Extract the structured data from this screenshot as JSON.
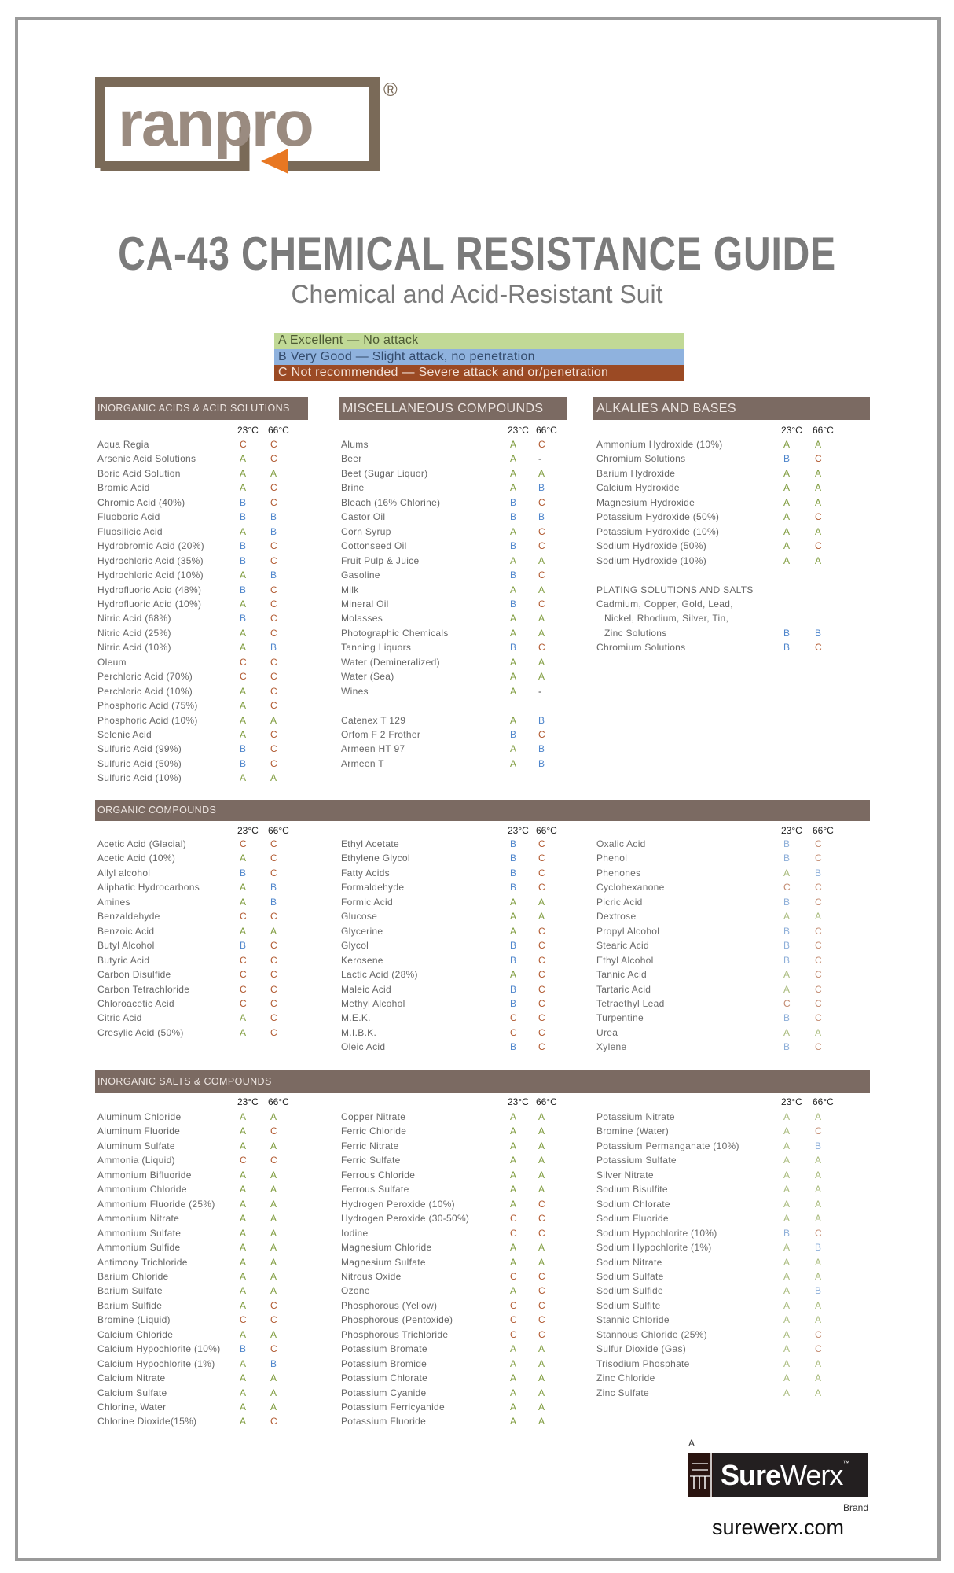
{
  "brand": {
    "logo_text": "ranpro",
    "registered_mark": "®",
    "logo_colors": {
      "frame": "#7a6a58",
      "ran": "#9a8b80",
      "pro": "#7a6a58",
      "arrow": "#e87722"
    }
  },
  "title": "CA-43 CHEMICAL RESISTANCE GUIDE",
  "subtitle": "Chemical and Acid-Resistant Suit",
  "legend": [
    {
      "label": "A Excellent — No attack",
      "color": "#c1d996"
    },
    {
      "label": "B Very Good — Slight attack, no penetration",
      "color": "#8fb2de"
    },
    {
      "label": "C Not recommended — Severe attack and or/penetration",
      "color": "#9b4a24"
    }
  ],
  "rating_colors": {
    "A": "#7f9c3e",
    "B": "#4f86cc",
    "C": "#b0582f"
  },
  "temp_headers": {
    "t23": "23°C",
    "t66": "66°C"
  },
  "inorganic_acids": {
    "title": "INORGANIC ACIDS & ACID SOLUTIONS",
    "rows": [
      {
        "name": "Aqua Regia",
        "t23": "C",
        "t66": "C"
      },
      {
        "name": "Arsenic Acid Solutions",
        "t23": "A",
        "t66": "C"
      },
      {
        "name": "Boric Acid Solution",
        "t23": "A",
        "t66": "A"
      },
      {
        "name": "Bromic Acid",
        "t23": "A",
        "t66": "C"
      },
      {
        "name": "Chromic Acid (40%)",
        "t23": "B",
        "t66": "C"
      },
      {
        "name": "Fluoboric Acid",
        "t23": "B",
        "t66": "B"
      },
      {
        "name": "Fluosilicic Acid",
        "t23": "A",
        "t66": "B"
      },
      {
        "name": "Hydrobromic Acid (20%)",
        "t23": "B",
        "t66": "C"
      },
      {
        "name": "Hydrochloric Acid (35%)",
        "t23": "B",
        "t66": "C"
      },
      {
        "name": "Hydrochloric Acid (10%)",
        "t23": "A",
        "t66": "B"
      },
      {
        "name": "Hydrofluoric Acid (48%)",
        "t23": "B",
        "t66": "C"
      },
      {
        "name": "Hydrofluoric Acid (10%)",
        "t23": "A",
        "t66": "C"
      },
      {
        "name": "Nitric Acid (68%)",
        "t23": "B",
        "t66": "C"
      },
      {
        "name": "Nitric Acid (25%)",
        "t23": "A",
        "t66": "C"
      },
      {
        "name": "Nitric Acid (10%)",
        "t23": "A",
        "t66": "B"
      },
      {
        "name": "Oleum",
        "t23": "C",
        "t66": "C"
      },
      {
        "name": "Perchloric Acid (70%)",
        "t23": "C",
        "t66": "C"
      },
      {
        "name": "Perchloric Acid (10%)",
        "t23": "A",
        "t66": "C"
      },
      {
        "name": "Phosphoric Acid (75%)",
        "t23": "A",
        "t66": "C"
      },
      {
        "name": "Phosphoric Acid (10%)",
        "t23": "A",
        "t66": "A"
      },
      {
        "name": "Selenic Acid",
        "t23": "A",
        "t66": "C"
      },
      {
        "name": "Sulfuric Acid (99%)",
        "t23": "B",
        "t66": "C"
      },
      {
        "name": "Sulfuric Acid (50%)",
        "t23": "B",
        "t66": "C"
      },
      {
        "name": "Sulfuric Acid (10%)",
        "t23": "A",
        "t66": "A"
      }
    ]
  },
  "misc": {
    "title": "MISCELLANEOUS COMPOUNDS",
    "groups": [
      {
        "rows": [
          {
            "name": "Alums",
            "t23": "A",
            "t66": "C"
          },
          {
            "name": "Beer",
            "t23": "A",
            "t66": "-"
          },
          {
            "name": "Beet (Sugar Liquor)",
            "t23": "A",
            "t66": "A"
          },
          {
            "name": "Brine",
            "t23": "A",
            "t66": "B"
          },
          {
            "name": "Bleach (16% Chlorine)",
            "t23": "B",
            "t66": "C"
          },
          {
            "name": "Castor Oil",
            "t23": "B",
            "t66": "B"
          },
          {
            "name": "Corn Syrup",
            "t23": "A",
            "t66": "C"
          },
          {
            "name": "Cottonseed Oil",
            "t23": "B",
            "t66": "C"
          },
          {
            "name": "Fruit Pulp & Juice",
            "t23": "A",
            "t66": "A"
          },
          {
            "name": "Gasoline",
            "t23": "B",
            "t66": "C"
          },
          {
            "name": "Milk",
            "t23": "A",
            "t66": "A"
          },
          {
            "name": "Mineral Oil",
            "t23": "B",
            "t66": "C"
          },
          {
            "name": "Molasses",
            "t23": "A",
            "t66": "A"
          },
          {
            "name": "Photographic Chemicals",
            "t23": "A",
            "t66": "A"
          },
          {
            "name": "Tanning Liquors",
            "t23": "B",
            "t66": "C"
          },
          {
            "name": "Water (Demineralized)",
            "t23": "A",
            "t66": "A"
          },
          {
            "name": "Water (Sea)",
            "t23": "A",
            "t66": "A"
          },
          {
            "name": "Wines",
            "t23": "A",
            "t66": "-"
          }
        ]
      },
      {
        "rows": [
          {
            "name": "Catenex T 129",
            "t23": "A",
            "t66": "B"
          },
          {
            "name": "Orfom F 2 Frother",
            "t23": "B",
            "t66": "C"
          },
          {
            "name": "Armeen HT 97",
            "t23": "A",
            "t66": "B"
          },
          {
            "name": "Armeen T",
            "t23": "A",
            "t66": "B"
          }
        ]
      }
    ]
  },
  "alkalies": {
    "title": "ALKALIES AND BASES",
    "rows": [
      {
        "name": "Ammonium Hydroxide (10%)",
        "t23": "A",
        "t66": "A"
      },
      {
        "name": "Chromium Solutions",
        "t23": "B",
        "t66": "C"
      },
      {
        "name": "Barium Hydroxide",
        "t23": "A",
        "t66": "A"
      },
      {
        "name": "Calcium Hydroxide",
        "t23": "A",
        "t66": "A"
      },
      {
        "name": "Magnesium Hydroxide",
        "t23": "A",
        "t66": "A"
      },
      {
        "name": "Potassium Hydroxide (50%)",
        "t23": "A",
        "t66": "C"
      },
      {
        "name": "Potassium Hydroxide (10%)",
        "t23": "A",
        "t66": "A"
      },
      {
        "name": "Sodium Hydroxide (50%)",
        "t23": "A",
        "t66": "C"
      },
      {
        "name": "Sodium Hydroxide (10%)",
        "t23": "A",
        "t66": "A"
      }
    ],
    "plating": {
      "title": "PLATING SOLUTIONS AND SALTS",
      "items": [
        {
          "lines": [
            "Cadmium, Copper, Gold, Lead,",
            "Nickel, Rhodium, Silver, Tin,",
            "Zinc Solutions"
          ],
          "t23": "B",
          "t66": "B"
        },
        {
          "lines": [
            "Chromium Solutions"
          ],
          "t23": "B",
          "t66": "C"
        }
      ]
    }
  },
  "organic": {
    "title": "ORGANIC COMPOUNDS",
    "columns": [
      {
        "rows": [
          {
            "name": "Acetic Acid (Glacial)",
            "t23": "C",
            "t66": "C"
          },
          {
            "name": "Acetic Acid (10%)",
            "t23": "A",
            "t66": "C"
          },
          {
            "name": "Allyl alcohol",
            "t23": "B",
            "t66": "C"
          },
          {
            "name": "Aliphatic Hydrocarbons",
            "t23": "A",
            "t66": "B"
          },
          {
            "name": "Amines",
            "t23": "A",
            "t66": "B"
          },
          {
            "name": "Benzaldehyde",
            "t23": "C",
            "t66": "C"
          },
          {
            "name": "Benzoic Acid",
            "t23": "A",
            "t66": "A"
          },
          {
            "name": "Butyl Alcohol",
            "t23": "B",
            "t66": "C"
          },
          {
            "name": "Butyric Acid",
            "t23": "C",
            "t66": "C"
          },
          {
            "name": "Carbon Disulfide",
            "t23": "C",
            "t66": "C"
          },
          {
            "name": "Carbon Tetrachloride",
            "t23": "C",
            "t66": "C"
          },
          {
            "name": "Chloroacetic Acid",
            "t23": "C",
            "t66": "C"
          },
          {
            "name": "Citric Acid",
            "t23": "A",
            "t66": "C"
          },
          {
            "name": "Cresylic Acid (50%)",
            "t23": "A",
            "t66": "C"
          }
        ]
      },
      {
        "rows": [
          {
            "name": "Ethyl Acetate",
            "t23": "B",
            "t66": "C"
          },
          {
            "name": "Ethylene Glycol",
            "t23": "B",
            "t66": "C"
          },
          {
            "name": "Fatty Acids",
            "t23": "B",
            "t66": "C"
          },
          {
            "name": "Formaldehyde",
            "t23": "B",
            "t66": "C"
          },
          {
            "name": "Formic Acid",
            "t23": "A",
            "t66": "A"
          },
          {
            "name": "Glucose",
            "t23": "A",
            "t66": "A"
          },
          {
            "name": "Glycerine",
            "t23": "A",
            "t66": "C"
          },
          {
            "name": "Glycol",
            "t23": "B",
            "t66": "C"
          },
          {
            "name": "Kerosene",
            "t23": "B",
            "t66": "C"
          },
          {
            "name": "Lactic Acid (28%)",
            "t23": "A",
            "t66": "C"
          },
          {
            "name": "Maleic Acid",
            "t23": "B",
            "t66": "C"
          },
          {
            "name": "Methyl Alcohol",
            "t23": "B",
            "t66": "C"
          },
          {
            "name": "M.E.K.",
            "t23": "C",
            "t66": "C"
          },
          {
            "name": "M.I.B.K.",
            "t23": "C",
            "t66": "C"
          },
          {
            "name": "Oleic Acid",
            "t23": "B",
            "t66": "C"
          }
        ]
      },
      {
        "rows": [
          {
            "name": "Oxalic Acid",
            "t23": "B",
            "t66": "C"
          },
          {
            "name": "Phenol",
            "t23": "B",
            "t66": "C"
          },
          {
            "name": "Phenones",
            "t23": "A",
            "t66": "B"
          },
          {
            "name": "Cyclohexanone",
            "t23": "C",
            "t66": "C"
          },
          {
            "name": "Picric Acid",
            "t23": "B",
            "t66": "C"
          },
          {
            "name": "Dextrose",
            "t23": "A",
            "t66": "A"
          },
          {
            "name": "Propyl Alcohol",
            "t23": "B",
            "t66": "C"
          },
          {
            "name": "Stearic Acid",
            "t23": "B",
            "t66": "C"
          },
          {
            "name": "Ethyl Alcohol",
            "t23": "B",
            "t66": "C"
          },
          {
            "name": "Tannic Acid",
            "t23": "A",
            "t66": "C"
          },
          {
            "name": "Tartaric Acid",
            "t23": "A",
            "t66": "C"
          },
          {
            "name": "Tetraethyl Lead",
            "t23": "C",
            "t66": "C"
          },
          {
            "name": "Turpentine",
            "t23": "B",
            "t66": "C"
          },
          {
            "name": "Urea",
            "t23": "A",
            "t66": "A"
          },
          {
            "name": "Xylene",
            "t23": "B",
            "t66": "C"
          }
        ]
      }
    ]
  },
  "salts": {
    "title": "INORGANIC SALTS & COMPOUNDS",
    "columns": [
      {
        "rows": [
          {
            "name": "Aluminum Chloride",
            "t23": "A",
            "t66": "A"
          },
          {
            "name": "Aluminum Fluoride",
            "t23": "A",
            "t66": "C"
          },
          {
            "name": "Aluminum Sulfate",
            "t23": "A",
            "t66": "A"
          },
          {
            "name": "Ammonia (Liquid)",
            "t23": "C",
            "t66": "C"
          },
          {
            "name": "Ammonium Bifluoride",
            "t23": "A",
            "t66": "A"
          },
          {
            "name": "Ammonium Chloride",
            "t23": "A",
            "t66": "A"
          },
          {
            "name": "Ammonium Fluoride (25%)",
            "t23": "A",
            "t66": "A"
          },
          {
            "name": "Ammonium Nitrate",
            "t23": "A",
            "t66": "A"
          },
          {
            "name": "Ammonium Sulfate",
            "t23": "A",
            "t66": "A"
          },
          {
            "name": "Ammonium Sulfide",
            "t23": "A",
            "t66": "A"
          },
          {
            "name": "Antimony Trichloride",
            "t23": "A",
            "t66": "A"
          },
          {
            "name": "Barium Chloride",
            "t23": "A",
            "t66": "A"
          },
          {
            "name": "Barium Sulfate",
            "t23": "A",
            "t66": "A"
          },
          {
            "name": "Barium Sulfide",
            "t23": "A",
            "t66": "C"
          },
          {
            "name": "Bromine (Liquid)",
            "t23": "C",
            "t66": "C"
          },
          {
            "name": "Calcium Chloride",
            "t23": "A",
            "t66": "A"
          },
          {
            "name": "Calcium Hypochlorite (10%)",
            "t23": "B",
            "t66": "C"
          },
          {
            "name": "Calcium Hypochlorite (1%)",
            "t23": "A",
            "t66": "B"
          },
          {
            "name": "Calcium Nitrate",
            "t23": "A",
            "t66": "A"
          },
          {
            "name": "Calcium Sulfate",
            "t23": "A",
            "t66": "A"
          },
          {
            "name": "Chlorine, Water",
            "t23": "A",
            "t66": "A"
          },
          {
            "name": "Chlorine Dioxide(15%)",
            "t23": "A",
            "t66": "C"
          }
        ]
      },
      {
        "rows": [
          {
            "name": "Copper Nitrate",
            "t23": "A",
            "t66": "A"
          },
          {
            "name": "Ferric Chloride",
            "t23": "A",
            "t66": "A"
          },
          {
            "name": "Ferric Nitrate",
            "t23": "A",
            "t66": "A"
          },
          {
            "name": "Ferric Sulfate",
            "t23": "A",
            "t66": "A"
          },
          {
            "name": "Ferrous Chloride",
            "t23": "A",
            "t66": "A"
          },
          {
            "name": "Ferrous Sulfate",
            "t23": "A",
            "t66": "A"
          },
          {
            "name": "Hydrogen Peroxide (10%)",
            "t23": "A",
            "t66": "C"
          },
          {
            "name": "Hydrogen Peroxide (30-50%)",
            "t23": "C",
            "t66": "C"
          },
          {
            "name": "Iodine",
            "t23": "C",
            "t66": "C"
          },
          {
            "name": "Magnesium Chloride",
            "t23": "A",
            "t66": "A"
          },
          {
            "name": "Magnesium Sulfate",
            "t23": "A",
            "t66": "A"
          },
          {
            "name": "Nitrous Oxide",
            "t23": "C",
            "t66": "C"
          },
          {
            "name": "Ozone",
            "t23": "A",
            "t66": "C"
          },
          {
            "name": "Phosphorous (Yellow)",
            "t23": "C",
            "t66": "C"
          },
          {
            "name": "Phosphorous (Pentoxide)",
            "t23": "C",
            "t66": "C"
          },
          {
            "name": "Phosphorous Trichloride",
            "t23": "C",
            "t66": "C"
          },
          {
            "name": "Potassium Bromate",
            "t23": "A",
            "t66": "A"
          },
          {
            "name": "Potassium Bromide",
            "t23": "A",
            "t66": "A"
          },
          {
            "name": "Potassium Chlorate",
            "t23": "A",
            "t66": "A"
          },
          {
            "name": "Potassium Cyanide",
            "t23": "A",
            "t66": "A"
          },
          {
            "name": "Potassium Ferricyanide",
            "t23": "A",
            "t66": "A"
          },
          {
            "name": "Potassium Fluoride",
            "t23": "A",
            "t66": "A"
          }
        ]
      },
      {
        "rows": [
          {
            "name": "Potassium Nitrate",
            "t23": "A",
            "t66": "A"
          },
          {
            "name": "Bromine (Water)",
            "t23": "A",
            "t66": "C"
          },
          {
            "name": "Potassium Permanganate (10%)",
            "t23": "A",
            "t66": "B"
          },
          {
            "name": "Potassium Sulfate",
            "t23": "A",
            "t66": "A"
          },
          {
            "name": "Silver Nitrate",
            "t23": "A",
            "t66": "A"
          },
          {
            "name": "Sodium Bisulfite",
            "t23": "A",
            "t66": "A"
          },
          {
            "name": "Sodium Chlorate",
            "t23": "A",
            "t66": "A"
          },
          {
            "name": "Sodium Fluoride",
            "t23": "A",
            "t66": "A"
          },
          {
            "name": "Sodium Hypochlorite (10%)",
            "t23": "B",
            "t66": "C"
          },
          {
            "name": "Sodium Hypochlorite (1%)",
            "t23": "A",
            "t66": "B"
          },
          {
            "name": "Sodium Nitrate",
            "t23": "A",
            "t66": "A"
          },
          {
            "name": "Sodium Sulfate",
            "t23": "A",
            "t66": "A"
          },
          {
            "name": "Sodium Sulfide",
            "t23": "A",
            "t66": "B"
          },
          {
            "name": "Sodium Sulfite",
            "t23": "A",
            "t66": "A"
          },
          {
            "name": "Stannic Chloride",
            "t23": "A",
            "t66": "A"
          },
          {
            "name": "Stannous Chloride (25%)",
            "t23": "A",
            "t66": "C"
          },
          {
            "name": "Sulfur Dioxide (Gas)",
            "t23": "A",
            "t66": "C"
          },
          {
            "name": "Trisodium Phosphate",
            "t23": "A",
            "t66": "A"
          },
          {
            "name": "Zinc Chloride",
            "t23": "A",
            "t66": "A"
          },
          {
            "name": "Zinc Sulfate",
            "t23": "A",
            "t66": "A"
          }
        ]
      }
    ]
  },
  "footer": {
    "prefix": "A",
    "logo_sure": "Sure",
    "logo_werx": "Werx",
    "trademark": "™",
    "suffix": "Brand",
    "url": "surewerx.com"
  }
}
